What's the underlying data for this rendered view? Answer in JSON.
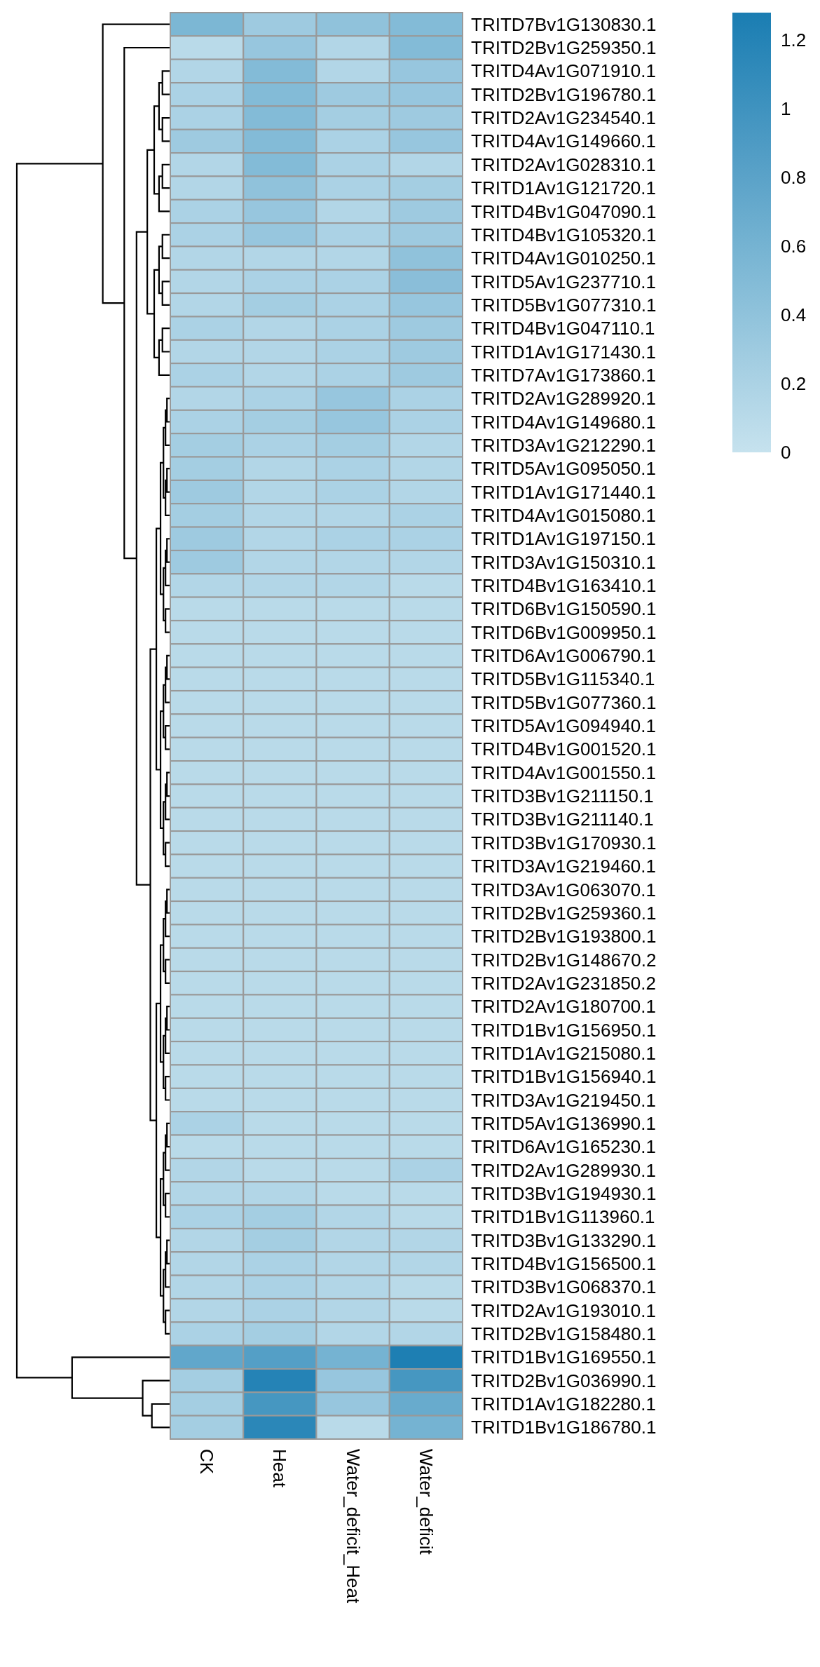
{
  "chart_data": {
    "type": "heatmap",
    "categories": [
      "CK",
      "Heat",
      "Water_deficit_Heat",
      "Water_deficit"
    ],
    "y_categories": [
      "TRITD7Bv1G130830.1",
      "TRITD2Bv1G259350.1",
      "TRITD4Av1G071910.1",
      "TRITD2Bv1G196780.1",
      "TRITD2Av1G234540.1",
      "TRITD4Av1G149660.1",
      "TRITD2Av1G028310.1",
      "TRITD1Av1G121720.1",
      "TRITD4Bv1G047090.1",
      "TRITD4Bv1G105320.1",
      "TRITD4Av1G010250.1",
      "TRITD5Av1G237710.1",
      "TRITD5Bv1G077310.1",
      "TRITD4Bv1G047110.1",
      "TRITD1Av1G171430.1",
      "TRITD7Av1G173860.1",
      "TRITD2Av1G289920.1",
      "TRITD4Av1G149680.1",
      "TRITD3Av1G212290.1",
      "TRITD5Av1G095050.1",
      "TRITD1Av1G171440.1",
      "TRITD4Av1G015080.1",
      "TRITD1Av1G197150.1",
      "TRITD3Av1G150310.1",
      "TRITD4Bv1G163410.1",
      "TRITD6Bv1G150590.1",
      "TRITD6Bv1G009950.1",
      "TRITD6Av1G006790.1",
      "TRITD5Bv1G115340.1",
      "TRITD5Bv1G077360.1",
      "TRITD5Av1G094940.1",
      "TRITD4Bv1G001520.1",
      "TRITD4Av1G001550.1",
      "TRITD3Bv1G211150.1",
      "TRITD3Bv1G211140.1",
      "TRITD3Bv1G170930.1",
      "TRITD3Av1G219460.1",
      "TRITD3Av1G063070.1",
      "TRITD2Bv1G259360.1",
      "TRITD2Bv1G193800.1",
      "TRITD2Bv1G148670.2",
      "TRITD2Av1G231850.2",
      "TRITD2Av1G180700.1",
      "TRITD1Bv1G156950.1",
      "TRITD1Av1G215080.1",
      "TRITD1Bv1G156940.1",
      "TRITD3Av1G219450.1",
      "TRITD5Av1G136990.1",
      "TRITD6Av1G165230.1",
      "TRITD2Av1G289930.1",
      "TRITD3Bv1G194930.1",
      "TRITD1Bv1G113960.1",
      "TRITD3Bv1G133290.1",
      "TRITD4Bv1G156500.1",
      "TRITD3Bv1G068370.1",
      "TRITD2Av1G193010.1",
      "TRITD2Bv1G158480.1",
      "TRITD1Bv1G169550.1",
      "TRITD2Bv1G036990.1",
      "TRITD1Av1G182280.1",
      "TRITD1Bv1G186780.1"
    ],
    "cells": [
      [
        0.55,
        0.3,
        0.4,
        0.5
      ],
      [
        0.1,
        0.35,
        0.15,
        0.5
      ],
      [
        0.15,
        0.5,
        0.15,
        0.35
      ],
      [
        0.2,
        0.5,
        0.3,
        0.35
      ],
      [
        0.2,
        0.5,
        0.25,
        0.3
      ],
      [
        0.3,
        0.5,
        0.2,
        0.35
      ],
      [
        0.15,
        0.5,
        0.2,
        0.15
      ],
      [
        0.15,
        0.4,
        0.2,
        0.25
      ],
      [
        0.2,
        0.35,
        0.15,
        0.3
      ],
      [
        0.2,
        0.35,
        0.2,
        0.3
      ],
      [
        0.15,
        0.15,
        0.15,
        0.4
      ],
      [
        0.15,
        0.2,
        0.2,
        0.45
      ],
      [
        0.15,
        0.25,
        0.2,
        0.35
      ],
      [
        0.2,
        0.15,
        0.2,
        0.3
      ],
      [
        0.15,
        0.15,
        0.2,
        0.3
      ],
      [
        0.2,
        0.15,
        0.2,
        0.3
      ],
      [
        0.15,
        0.2,
        0.35,
        0.2
      ],
      [
        0.2,
        0.25,
        0.35,
        0.2
      ],
      [
        0.25,
        0.2,
        0.25,
        0.15
      ],
      [
        0.25,
        0.15,
        0.2,
        0.15
      ],
      [
        0.3,
        0.15,
        0.2,
        0.15
      ],
      [
        0.25,
        0.15,
        0.15,
        0.2
      ],
      [
        0.3,
        0.15,
        0.2,
        0.2
      ],
      [
        0.3,
        0.15,
        0.15,
        0.15
      ],
      [
        0.15,
        0.15,
        0.15,
        0.1
      ],
      [
        0.1,
        0.1,
        0.1,
        0.1
      ],
      [
        0.1,
        0.1,
        0.1,
        0.1
      ],
      [
        0.1,
        0.1,
        0.1,
        0.1
      ],
      [
        0.1,
        0.1,
        0.1,
        0.1
      ],
      [
        0.1,
        0.1,
        0.1,
        0.1
      ],
      [
        0.1,
        0.1,
        0.1,
        0.1
      ],
      [
        0.1,
        0.1,
        0.1,
        0.1
      ],
      [
        0.1,
        0.1,
        0.1,
        0.1
      ],
      [
        0.1,
        0.1,
        0.1,
        0.1
      ],
      [
        0.1,
        0.1,
        0.1,
        0.1
      ],
      [
        0.1,
        0.1,
        0.1,
        0.1
      ],
      [
        0.1,
        0.1,
        0.1,
        0.1
      ],
      [
        0.1,
        0.1,
        0.1,
        0.1
      ],
      [
        0.1,
        0.1,
        0.1,
        0.1
      ],
      [
        0.1,
        0.1,
        0.1,
        0.1
      ],
      [
        0.1,
        0.1,
        0.1,
        0.1
      ],
      [
        0.1,
        0.1,
        0.1,
        0.1
      ],
      [
        0.1,
        0.1,
        0.1,
        0.1
      ],
      [
        0.1,
        0.1,
        0.1,
        0.1
      ],
      [
        0.1,
        0.1,
        0.1,
        0.1
      ],
      [
        0.1,
        0.1,
        0.1,
        0.1
      ],
      [
        0.1,
        0.1,
        0.1,
        0.1
      ],
      [
        0.2,
        0.1,
        0.1,
        0.1
      ],
      [
        0.1,
        0.1,
        0.1,
        0.1
      ],
      [
        0.15,
        0.1,
        0.1,
        0.2
      ],
      [
        0.15,
        0.15,
        0.1,
        0.1
      ],
      [
        0.2,
        0.25,
        0.15,
        0.1
      ],
      [
        0.15,
        0.25,
        0.15,
        0.15
      ],
      [
        0.15,
        0.2,
        0.15,
        0.15
      ],
      [
        0.15,
        0.2,
        0.15,
        0.1
      ],
      [
        0.15,
        0.2,
        0.15,
        0.1
      ],
      [
        0.2,
        0.25,
        0.15,
        0.15
      ],
      [
        0.75,
        0.85,
        0.6,
        1.25
      ],
      [
        0.25,
        1.2,
        0.35,
        0.95
      ],
      [
        0.25,
        0.95,
        0.35,
        0.7
      ],
      [
        0.25,
        1.15,
        0.1,
        0.6
      ]
    ],
    "clim": [
      0,
      1.28
    ],
    "cticks": [
      0,
      0.2,
      0.4,
      0.6,
      0.8,
      1,
      1.2
    ]
  }
}
